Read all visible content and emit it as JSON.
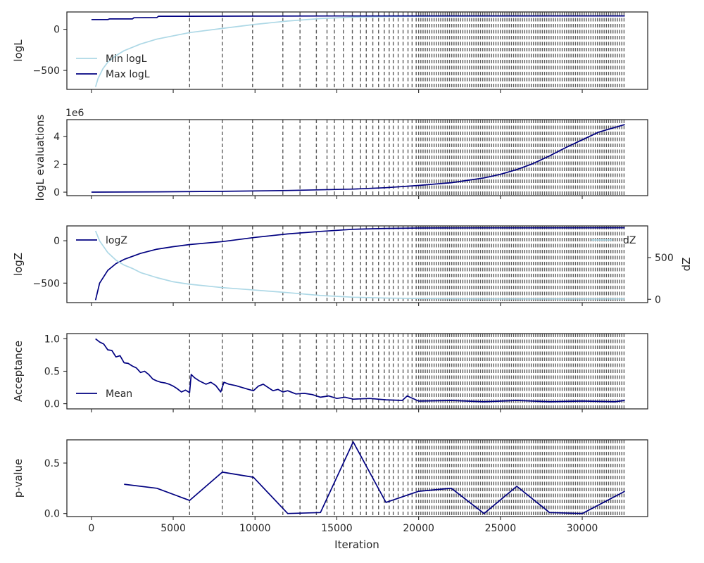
{
  "chart_data": {
    "type": "line",
    "xlabel": "Iteration",
    "shared_x": {
      "ticks": [
        0,
        5000,
        10000,
        15000,
        20000,
        25000,
        30000
      ],
      "tick_labels": [
        "0",
        "5000",
        "10000",
        "15000",
        "20000",
        "25000",
        "30000"
      ],
      "range": [
        -1500,
        34000
      ]
    },
    "iteration_markers": {
      "description_free": true,
      "sparse": [
        6000,
        8000,
        9850,
        11700,
        12750,
        13750,
        14400,
        14850,
        15400,
        15950,
        16450,
        16800,
        17200,
        17550,
        17900,
        18200,
        18450,
        18750,
        19050,
        19350,
        19600,
        19850
      ],
      "dense_from": 20000,
      "dense_to": 32600,
      "dense_step": 135
    },
    "panels": [
      {
        "ylabel": "logL",
        "ylim": [
          -730,
          210
        ],
        "yticks": [
          0,
          -500
        ],
        "ytick_labels": [
          "0",
          "−500"
        ],
        "legend": "lower-left",
        "series": [
          {
            "name": "Min logL",
            "color": "#add8e6",
            "x": [
              250,
              400,
              700,
              1000,
              1500,
              2000,
              3000,
              4000,
              5000,
              6000,
              8000,
              10000,
              12000,
              14000,
              16000,
              18000,
              20000,
              24000,
              28000,
              32600
            ],
            "y": [
              -700,
              -600,
              -480,
              -400,
              -320,
              -260,
              -180,
              -120,
              -80,
              -40,
              10,
              60,
              100,
              130,
              148,
              155,
              158,
              160,
              161,
              162
            ]
          },
          {
            "name": "Max logL",
            "color": "#000080",
            "x": [
              0,
              1000,
              1100,
              2500,
              2600,
              4000,
              4100,
              5000,
              6000,
              8000,
              10000,
              15000,
              20000,
              32600
            ],
            "y": [
              118,
              118,
              125,
              125,
              140,
              142,
              158,
              158,
              158,
              159,
              160,
              161,
              162,
              162
            ]
          }
        ]
      },
      {
        "ylabel": "logL evaluations",
        "multiplier_label": "1e6",
        "ylim": [
          -0.25,
          5.2
        ],
        "yticks": [
          0,
          2,
          4
        ],
        "ytick_labels": [
          "0",
          "2",
          "4"
        ],
        "series": [
          {
            "name": "",
            "color": "#000080",
            "x": [
              0,
              4000,
              8000,
              12000,
              16000,
              18000,
              20000,
              22000,
              24000,
              25000,
              26000,
              27000,
              28000,
              29000,
              30000,
              31000,
              32600
            ],
            "y": [
              0,
              0.02,
              0.06,
              0.12,
              0.22,
              0.32,
              0.48,
              0.68,
              1.02,
              1.28,
              1.62,
              2.05,
              2.6,
              3.2,
              3.75,
              4.3,
              4.85
            ]
          }
        ]
      },
      {
        "ylabel": "logZ",
        "ylabel_right": "dZ",
        "ylim": [
          -730,
          175
        ],
        "yticks": [
          0,
          -500
        ],
        "ytick_labels": [
          "0",
          "−500"
        ],
        "ylim_right": [
          -40,
          880
        ],
        "yticks_right": [
          0,
          500
        ],
        "ytick_labels_right": [
          "0",
          "500"
        ],
        "legend": "upper-left",
        "legend_right": "upper-right",
        "series": [
          {
            "name": "logZ",
            "color": "#000080",
            "axis": "left",
            "x": [
              250,
              500,
              1000,
              1500,
              2000,
              3000,
              4000,
              5000,
              6000,
              8000,
              10000,
              12000,
              14000,
              16000,
              18000,
              20000,
              24000,
              32600
            ],
            "y": [
              -700,
              -500,
              -350,
              -270,
              -220,
              -150,
              -100,
              -70,
              -45,
              -10,
              40,
              80,
              110,
              135,
              145,
              150,
              152,
              153
            ]
          },
          {
            "name": "dZ",
            "color": "#add8e6",
            "axis": "right",
            "x": [
              250,
              500,
              1000,
              1500,
              2000,
              2500,
              3000,
              4000,
              5000,
              6000,
              8000,
              10000,
              12000,
              14000,
              16000,
              18000,
              20000,
              24000,
              32600
            ],
            "y": [
              820,
              700,
              560,
              470,
              410,
              370,
              320,
              260,
              210,
              180,
              140,
              110,
              80,
              45,
              25,
              15,
              10,
              5,
              5
            ]
          }
        ]
      },
      {
        "ylabel": "Acceptance",
        "ylim": [
          -0.08,
          1.08
        ],
        "yticks": [
          0,
          0.5,
          1
        ],
        "ytick_labels": [
          "0.0",
          "0.5",
          "1.0"
        ],
        "legend": "lower-left",
        "series": [
          {
            "name": "Mean",
            "color": "#000080",
            "x": [
              250,
              500,
              750,
              1000,
              1250,
              1500,
              1750,
              2000,
              2250,
              2500,
              2750,
              3000,
              3250,
              3500,
              3750,
              4000,
              4250,
              4500,
              4750,
              5000,
              5250,
              5500,
              5750,
              6000,
              6100,
              6300,
              6600,
              7000,
              7300,
              7600,
              7900,
              8100,
              8400,
              8800,
              9200,
              9600,
              9900,
              10200,
              10500,
              10800,
              11100,
              11400,
              11700,
              12000,
              12500,
              13000,
              13500,
              14000,
              14500,
              15000,
              15500,
              16000,
              17000,
              18000,
              19000,
              19300,
              20000,
              22000,
              24000,
              26000,
              28000,
              30000,
              32000,
              32600
            ],
            "y": [
              1.0,
              0.95,
              0.92,
              0.83,
              0.82,
              0.72,
              0.74,
              0.63,
              0.62,
              0.58,
              0.55,
              0.48,
              0.5,
              0.45,
              0.38,
              0.35,
              0.33,
              0.32,
              0.3,
              0.27,
              0.23,
              0.18,
              0.21,
              0.17,
              0.45,
              0.4,
              0.35,
              0.3,
              0.33,
              0.28,
              0.18,
              0.33,
              0.3,
              0.28,
              0.25,
              0.22,
              0.2,
              0.27,
              0.3,
              0.25,
              0.2,
              0.22,
              0.18,
              0.2,
              0.15,
              0.16,
              0.14,
              0.1,
              0.12,
              0.08,
              0.1,
              0.07,
              0.08,
              0.06,
              0.05,
              0.12,
              0.04,
              0.05,
              0.03,
              0.05,
              0.03,
              0.04,
              0.03,
              0.05
            ]
          }
        ]
      },
      {
        "ylabel": "p-value",
        "ylim": [
          -0.03,
          0.73
        ],
        "yticks": [
          0,
          0.5
        ],
        "ytick_labels": [
          "0.0",
          "0.5"
        ],
        "series": [
          {
            "name": "",
            "color": "#000080",
            "x": [
              2000,
              4000,
              6000,
              8000,
              9900,
              12000,
              14000,
              16000,
              18000,
              20000,
              22000,
              24000,
              26000,
              28000,
              30000,
              32600
            ],
            "y": [
              0.29,
              0.25,
              0.13,
              0.41,
              0.36,
              0.0,
              0.01,
              0.71,
              0.11,
              0.22,
              0.25,
              0.0,
              0.27,
              0.01,
              0.0,
              0.22
            ]
          }
        ]
      }
    ]
  }
}
